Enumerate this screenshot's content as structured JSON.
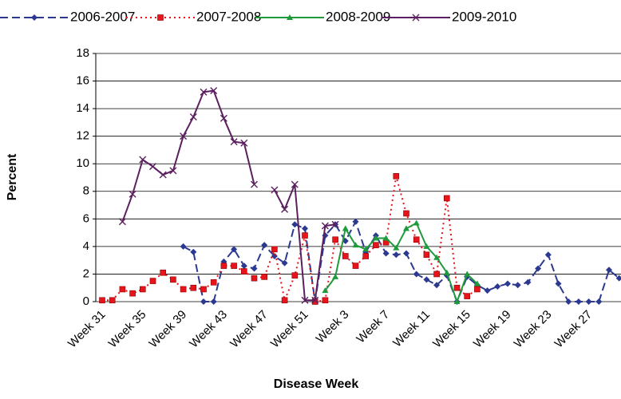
{
  "chart_data": {
    "type": "line",
    "x_label": "Disease Week",
    "y_label": "Percent",
    "categories": [
      "Week 31",
      null,
      null,
      null,
      "Week 35",
      null,
      null,
      null,
      "Week 39",
      null,
      null,
      null,
      "Week 43",
      null,
      null,
      null,
      "Week 47",
      null,
      null,
      null,
      "Week 51",
      null,
      null,
      null,
      "Week 3",
      null,
      null,
      null,
      "Week 7",
      null,
      null,
      null,
      "Week 11",
      null,
      null,
      null,
      "Week 15",
      null,
      null,
      null,
      "Week 19",
      null,
      null,
      null,
      "Week 23",
      null,
      null,
      null,
      "Week 27",
      null,
      null,
      null
    ],
    "ylim": [
      0,
      18
    ],
    "yticks": [
      0,
      2,
      4,
      6,
      8,
      10,
      12,
      14,
      16,
      18
    ],
    "grid": true,
    "legend": "top",
    "series": [
      {
        "name": "2006-2007",
        "color": "#2b3990",
        "marker": "diamond",
        "dash": "10,5",
        "values": [
          null,
          null,
          null,
          null,
          null,
          null,
          null,
          null,
          4.0,
          3.6,
          0,
          0,
          2.9,
          3.8,
          2.6,
          2.4,
          4.1,
          3.3,
          2.8,
          5.6,
          5.3,
          0,
          4.8,
          5.6,
          4.4,
          5.8,
          3.6,
          4.8,
          3.5,
          3.4,
          3.5,
          2.0,
          1.6,
          1.2,
          1.9,
          0,
          1.8,
          1.2,
          0.8,
          1.1,
          1.3,
          1.2,
          1.4,
          2.4,
          3.4,
          1.3,
          0,
          0,
          0,
          0,
          2.3,
          1.7
        ]
      },
      {
        "name": "2007-2008",
        "color": "#e8141b",
        "marker": "square",
        "dash": "2,4",
        "values": [
          0.1,
          0.1,
          0.9,
          0.6,
          0.9,
          1.5,
          2.1,
          1.6,
          0.9,
          1.0,
          0.9,
          1.4,
          2.6,
          2.6,
          2.2,
          1.7,
          1.8,
          3.8,
          0.1,
          1.9,
          4.8,
          0,
          0.1,
          4.5,
          3.3,
          2.6,
          3.3,
          4.1,
          4.3,
          9.1,
          6.4,
          4.5,
          3.4,
          2.0,
          7.5,
          1.0,
          0.4,
          0.9,
          null,
          null,
          null,
          null,
          null,
          null,
          null,
          null,
          null,
          null,
          null,
          null,
          null,
          null
        ]
      },
      {
        "name": "2008-2009",
        "color": "#1f9a3a",
        "marker": "triangle",
        "dash": "none",
        "values": [
          null,
          null,
          null,
          null,
          null,
          null,
          null,
          null,
          null,
          null,
          null,
          null,
          null,
          null,
          null,
          null,
          null,
          null,
          null,
          null,
          null,
          null,
          0.8,
          1.8,
          5.3,
          4.1,
          3.8,
          4.6,
          4.6,
          3.9,
          5.3,
          5.7,
          4.0,
          3.2,
          2.1,
          0,
          2.0,
          1.3,
          null,
          null,
          null,
          null,
          null,
          null,
          null,
          null,
          null,
          null,
          null,
          null,
          null,
          null
        ]
      },
      {
        "name": "2009-2010",
        "color": "#5c1f5f",
        "marker": "x",
        "dash": "none",
        "values": [
          null,
          null,
          5.8,
          7.8,
          10.3,
          9.8,
          9.2,
          9.5,
          12.0,
          13.4,
          15.2,
          15.3,
          13.3,
          11.6,
          11.5,
          8.5,
          null,
          8.1,
          6.7,
          8.5,
          0.1,
          0.1,
          5.5,
          5.6,
          null,
          null,
          null,
          null,
          null,
          null,
          null,
          null,
          null,
          null,
          null,
          null,
          null,
          null,
          null,
          null,
          null,
          null,
          null,
          null,
          null,
          null,
          null,
          null,
          null,
          null,
          null,
          null
        ]
      }
    ]
  }
}
